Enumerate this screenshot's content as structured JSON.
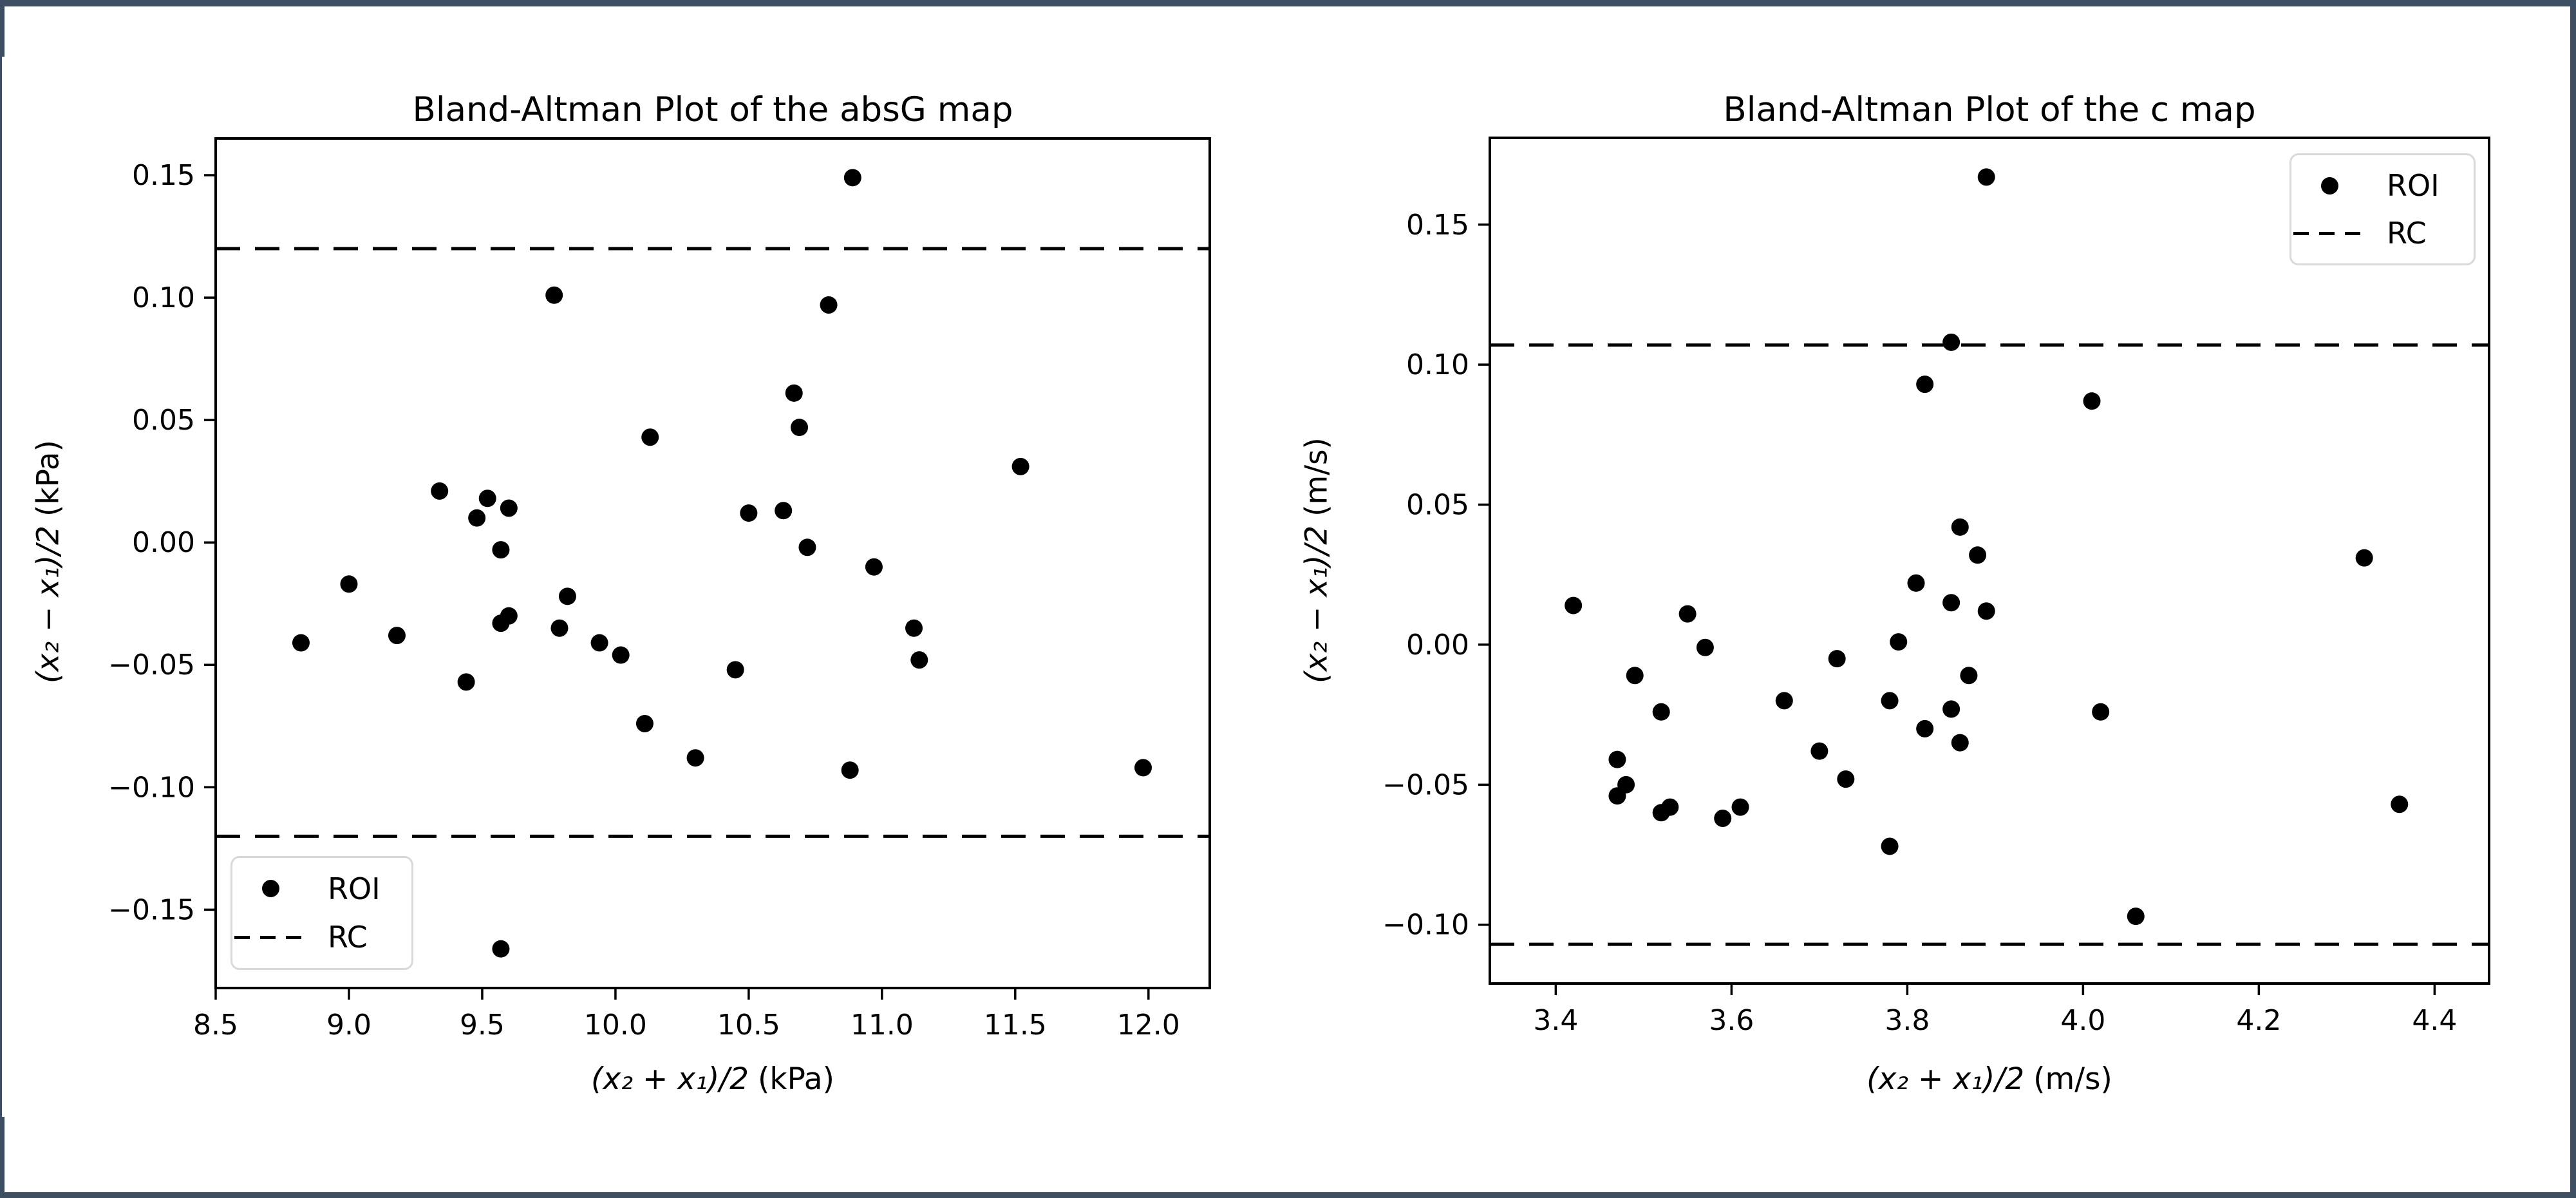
{
  "page": {
    "background": "#ffffff",
    "frame_color": "#3D4E63",
    "marker_color": "#000000",
    "dashed_line_color": "#000000"
  },
  "chart_data": [
    {
      "type": "scatter",
      "title": "Bland-Altman Plot of the absG map",
      "xlabel_math": "(x₂ + x₁)/2",
      "xlabel_unit": "(kPa)",
      "ylabel_math": "(x₂ − x₁)/2",
      "ylabel_unit": "(kPa)",
      "xlim": [
        8.5,
        12.23
      ],
      "ylim": [
        -0.182,
        0.165
      ],
      "xticks": [
        8.5,
        9.0,
        9.5,
        10.0,
        10.5,
        11.0,
        11.5,
        12.0
      ],
      "xtick_labels": [
        "8.5",
        "9.0",
        "9.5",
        "10.0",
        "10.5",
        "11.0",
        "11.5",
        "12.0"
      ],
      "yticks": [
        0.15,
        0.1,
        0.05,
        0.0,
        -0.05,
        -0.1,
        -0.15
      ],
      "ytick_labels": [
        "0.15",
        "0.10",
        "0.05",
        "0.00",
        "−0.05",
        "−0.10",
        "−0.15"
      ],
      "grid": false,
      "rc_lines": [
        0.12,
        -0.12
      ],
      "legend": {
        "position": "lower-left",
        "entries": [
          {
            "label": "ROI",
            "marker": "dot"
          },
          {
            "label": "RC",
            "marker": "dashed-line"
          }
        ]
      },
      "points": [
        [
          10.89,
          0.149
        ],
        [
          9.77,
          0.101
        ],
        [
          10.8,
          0.097
        ],
        [
          10.67,
          0.061
        ],
        [
          10.69,
          0.047
        ],
        [
          10.13,
          0.043
        ],
        [
          11.52,
          0.031
        ],
        [
          9.34,
          0.021
        ],
        [
          9.52,
          0.018
        ],
        [
          9.6,
          0.014
        ],
        [
          10.63,
          0.013
        ],
        [
          10.5,
          0.012
        ],
        [
          9.48,
          0.01
        ],
        [
          9.57,
          -0.003
        ],
        [
          10.72,
          -0.002
        ],
        [
          10.97,
          -0.01
        ],
        [
          9.0,
          -0.017
        ],
        [
          9.82,
          -0.022
        ],
        [
          9.6,
          -0.03
        ],
        [
          9.57,
          -0.033
        ],
        [
          9.79,
          -0.035
        ],
        [
          11.12,
          -0.035
        ],
        [
          9.18,
          -0.038
        ],
        [
          8.82,
          -0.041
        ],
        [
          9.94,
          -0.041
        ],
        [
          10.02,
          -0.046
        ],
        [
          11.14,
          -0.048
        ],
        [
          10.45,
          -0.052
        ],
        [
          9.44,
          -0.057
        ],
        [
          10.11,
          -0.074
        ],
        [
          10.3,
          -0.088
        ],
        [
          11.98,
          -0.092
        ],
        [
          10.88,
          -0.093
        ],
        [
          9.57,
          -0.166
        ]
      ]
    },
    {
      "type": "scatter",
      "title": "Bland-Altman Plot of the c map",
      "xlabel_math": "(x₂ + x₁)/2",
      "xlabel_unit": "(m/s)",
      "ylabel_math": "(x₂ − x₁)/2",
      "ylabel_unit": "(m/s)",
      "xlim": [
        3.325,
        4.462
      ],
      "ylim": [
        -0.121,
        0.181
      ],
      "xticks": [
        3.4,
        3.6,
        3.8,
        4.0,
        4.2,
        4.4
      ],
      "xtick_labels": [
        "3.4",
        "3.6",
        "3.8",
        "4.0",
        "4.2",
        "4.4"
      ],
      "yticks": [
        0.15,
        0.1,
        0.05,
        0.0,
        -0.05,
        -0.1
      ],
      "ytick_labels": [
        "0.15",
        "0.10",
        "0.05",
        "0.00",
        "−0.05",
        "−0.10"
      ],
      "grid": false,
      "rc_lines": [
        0.107,
        -0.107
      ],
      "legend": {
        "position": "upper-right",
        "entries": [
          {
            "label": "ROI",
            "marker": "dot"
          },
          {
            "label": "RC",
            "marker": "dashed-line"
          }
        ]
      },
      "points": [
        [
          3.89,
          0.167
        ],
        [
          3.85,
          0.108
        ],
        [
          3.82,
          0.093
        ],
        [
          4.01,
          0.087
        ],
        [
          3.86,
          0.042
        ],
        [
          3.88,
          0.032
        ],
        [
          4.32,
          0.031
        ],
        [
          3.81,
          0.022
        ],
        [
          3.85,
          0.015
        ],
        [
          3.42,
          0.014
        ],
        [
          3.89,
          0.012
        ],
        [
          3.55,
          0.011
        ],
        [
          3.79,
          0.001
        ],
        [
          3.57,
          -0.001
        ],
        [
          3.72,
          -0.005
        ],
        [
          3.87,
          -0.011
        ],
        [
          3.49,
          -0.011
        ],
        [
          3.66,
          -0.02
        ],
        [
          3.78,
          -0.02
        ],
        [
          3.85,
          -0.023
        ],
        [
          3.52,
          -0.024
        ],
        [
          4.02,
          -0.024
        ],
        [
          3.82,
          -0.03
        ],
        [
          3.86,
          -0.035
        ],
        [
          3.7,
          -0.038
        ],
        [
          3.47,
          -0.041
        ],
        [
          3.73,
          -0.048
        ],
        [
          3.48,
          -0.05
        ],
        [
          3.47,
          -0.054
        ],
        [
          3.61,
          -0.058
        ],
        [
          3.53,
          -0.058
        ],
        [
          3.52,
          -0.06
        ],
        [
          3.59,
          -0.062
        ],
        [
          3.78,
          -0.072
        ],
        [
          4.36,
          -0.057
        ],
        [
          4.06,
          -0.097
        ]
      ]
    }
  ]
}
